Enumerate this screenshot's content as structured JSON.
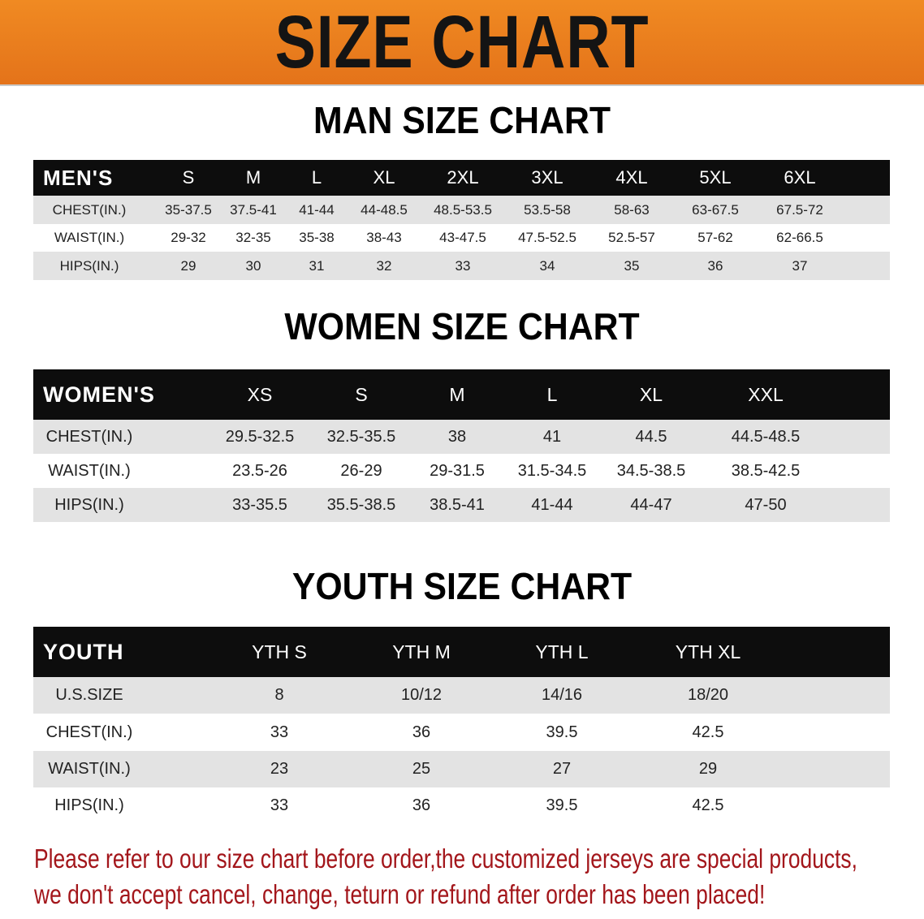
{
  "banner": {
    "title": "SIZE CHART",
    "color": "#e97d1e"
  },
  "men": {
    "title": "MAN SIZE CHART",
    "header": [
      "MEN'S",
      "S",
      "M",
      "L",
      "XL",
      "2XL",
      "3XL",
      "4XL",
      "5XL",
      "6XL"
    ],
    "rows": [
      [
        "CHEST(IN.)",
        "35-37.5",
        "37.5-41",
        "41-44",
        "44-48.5",
        "48.5-53.5",
        "53.5-58",
        "58-63",
        "63-67.5",
        "67.5-72"
      ],
      [
        "WAIST(IN.)",
        "29-32",
        "32-35",
        "35-38",
        "38-43",
        "43-47.5",
        "47.5-52.5",
        "52.5-57",
        "57-62",
        "62-66.5"
      ],
      [
        "HIPS(IN.)",
        "29",
        "30",
        "31",
        "32",
        "33",
        "34",
        "35",
        "36",
        "37"
      ]
    ]
  },
  "women": {
    "title": "WOMEN SIZE CHART",
    "header": [
      "WOMEN'S",
      "XS",
      "S",
      "M",
      "L",
      "XL",
      "XXL"
    ],
    "rows": [
      [
        "CHEST(IN.)",
        "29.5-32.5",
        "32.5-35.5",
        "38",
        "41",
        "44.5",
        "44.5-48.5"
      ],
      [
        "WAIST(IN.)",
        "23.5-26",
        "26-29",
        "29-31.5",
        "31.5-34.5",
        "34.5-38.5",
        "38.5-42.5"
      ],
      [
        "HIPS(IN.)",
        "33-35.5",
        "35.5-38.5",
        "38.5-41",
        "41-44",
        "44-47",
        "47-50"
      ]
    ]
  },
  "youth": {
    "title": "YOUTH SIZE CHART",
    "header": [
      "YOUTH",
      "YTH S",
      "YTH M",
      "YTH L",
      "YTH XL"
    ],
    "rows": [
      [
        "U.S.SIZE",
        "8",
        "10/12",
        "14/16",
        "18/20"
      ],
      [
        "CHEST(IN.)",
        "33",
        "36",
        "39.5",
        "42.5"
      ],
      [
        "WAIST(IN.)",
        "23",
        "25",
        "27",
        "29"
      ],
      [
        "HIPS(IN.)",
        "33",
        "36",
        "39.5",
        "42.5"
      ]
    ]
  },
  "notice": {
    "line1": "Please refer to our size chart before order,the customized jerseys are special products,",
    "line2": "we don't accept cancel, change, teturn or refund after order has been placed!",
    "color": "#a3161b"
  }
}
